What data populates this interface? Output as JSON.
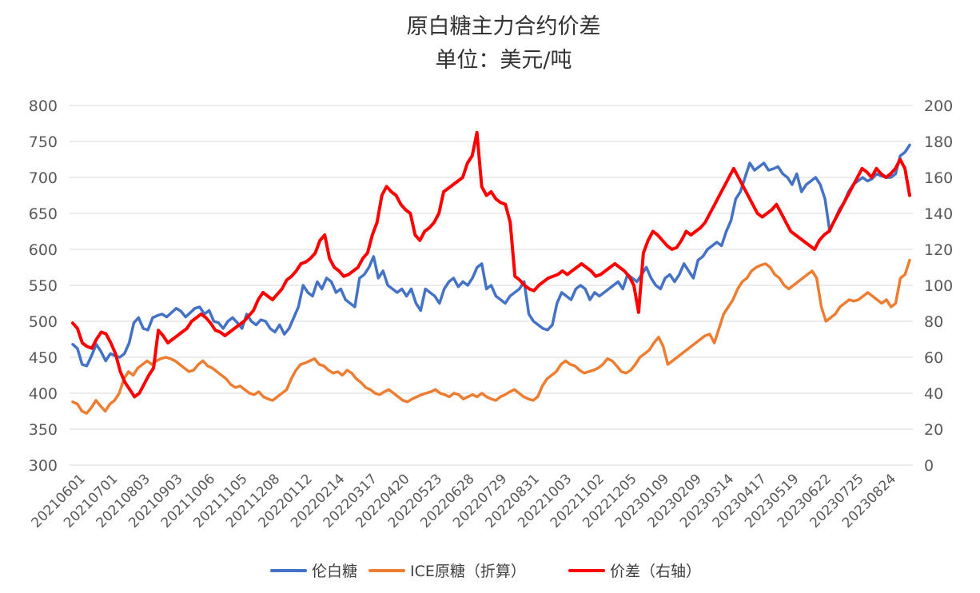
{
  "chart_data": {
    "type": "line",
    "title": "原白糖主力合约价差",
    "subtitle": "单位：美元/吨",
    "y_left": {
      "min": 300,
      "max": 800,
      "step": 50,
      "ticks": [
        "300",
        "350",
        "400",
        "450",
        "500",
        "550",
        "600",
        "650",
        "700",
        "750",
        "800"
      ]
    },
    "y_right": {
      "min": 0,
      "max": 200,
      "step": 20,
      "ticks": [
        "0",
        "20",
        "40",
        "60",
        "80",
        "100",
        "120",
        "140",
        "160",
        "180",
        "200"
      ]
    },
    "x_tick_labels": [
      "20210601",
      "20210701",
      "20210803",
      "20210903",
      "20211006",
      "20211105",
      "20211208",
      "20220112",
      "20220214",
      "20220317",
      "20220420",
      "20220523",
      "20220628",
      "20220729",
      "20220831",
      "20221003",
      "20221102",
      "20221205",
      "20230109",
      "20230209",
      "20230314",
      "20230417",
      "20230519",
      "20230622",
      "20230725",
      "20230824"
    ],
    "legend": {
      "position": "bottom",
      "entries": [
        "伦白糖",
        "ICE原糖（折算）",
        "价差（右轴）"
      ]
    },
    "grid": true,
    "series": [
      {
        "name": "伦白糖",
        "axis": "left",
        "color": "#4472C4",
        "values": [
          468,
          462,
          440,
          438,
          452,
          468,
          458,
          445,
          455,
          452,
          450,
          455,
          470,
          498,
          505,
          490,
          488,
          505,
          508,
          510,
          506,
          512,
          518,
          514,
          506,
          512,
          518,
          520,
          510,
          515,
          500,
          498,
          490,
          500,
          505,
          498,
          490,
          510,
          500,
          495,
          502,
          500,
          490,
          485,
          495,
          482,
          490,
          505,
          520,
          550,
          540,
          535,
          555,
          545,
          560,
          555,
          540,
          545,
          530,
          525,
          520,
          560,
          565,
          575,
          590,
          560,
          570,
          550,
          545,
          540,
          545,
          535,
          545,
          525,
          515,
          545,
          540,
          535,
          525,
          545,
          555,
          560,
          548,
          555,
          550,
          560,
          575,
          580,
          545,
          550,
          535,
          530,
          525,
          535,
          540,
          545,
          555,
          510,
          500,
          495,
          490,
          488,
          495,
          525,
          540,
          535,
          530,
          545,
          550,
          545,
          530,
          540,
          535,
          540,
          545,
          550,
          555,
          545,
          565,
          560,
          555,
          565,
          575,
          560,
          550,
          545,
          560,
          565,
          555,
          565,
          580,
          570,
          560,
          585,
          590,
          600,
          605,
          610,
          605,
          625,
          640,
          670,
          680,
          700,
          720,
          710,
          715,
          720,
          710,
          712,
          715,
          705,
          700,
          690,
          705,
          680,
          690,
          695,
          700,
          690,
          670,
          625,
          640,
          655,
          665,
          680,
          690,
          695,
          700,
          695,
          698,
          705,
          702,
          700,
          700,
          705,
          730,
          735,
          745
        ]
      },
      {
        "name": "ICE原糖（折算）",
        "axis": "left",
        "color": "#ED7D31",
        "values": [
          388,
          385,
          375,
          372,
          380,
          390,
          382,
          375,
          385,
          390,
          400,
          420,
          430,
          425,
          435,
          440,
          445,
          440,
          445,
          448,
          450,
          448,
          445,
          440,
          435,
          430,
          432,
          440,
          445,
          438,
          435,
          430,
          425,
          420,
          412,
          408,
          410,
          405,
          400,
          398,
          402,
          395,
          392,
          390,
          395,
          400,
          405,
          420,
          432,
          440,
          442,
          445,
          448,
          440,
          438,
          432,
          428,
          430,
          425,
          432,
          428,
          420,
          415,
          408,
          405,
          400,
          398,
          402,
          405,
          400,
          395,
          390,
          388,
          392,
          395,
          398,
          400,
          402,
          405,
          400,
          398,
          395,
          400,
          398,
          392,
          395,
          398,
          395,
          400,
          395,
          392,
          390,
          395,
          398,
          402,
          405,
          400,
          395,
          392,
          390,
          395,
          410,
          420,
          425,
          430,
          440,
          445,
          440,
          438,
          432,
          428,
          430,
          432,
          435,
          440,
          448,
          445,
          438,
          430,
          428,
          432,
          440,
          450,
          455,
          460,
          470,
          478,
          465,
          440,
          445,
          450,
          455,
          460,
          465,
          470,
          475,
          480,
          482,
          470,
          490,
          510,
          520,
          530,
          545,
          555,
          560,
          570,
          575,
          578,
          580,
          575,
          565,
          560,
          550,
          545,
          550,
          555,
          560,
          565,
          570,
          560,
          520,
          500,
          505,
          510,
          520,
          525,
          530,
          528,
          530,
          535,
          540,
          535,
          530,
          525,
          530,
          520,
          525,
          560,
          565,
          585
        ]
      },
      {
        "name": "价差（右轴）",
        "axis": "right",
        "color": "#FF0000",
        "values": [
          79,
          76,
          68,
          66,
          65,
          70,
          74,
          73,
          68,
          62,
          52,
          46,
          42,
          38,
          40,
          45,
          50,
          54,
          75,
          72,
          68,
          70,
          72,
          74,
          76,
          80,
          82,
          84,
          82,
          79,
          75,
          74,
          72,
          74,
          76,
          78,
          80,
          83,
          86,
          92,
          96,
          94,
          92,
          95,
          98,
          103,
          105,
          108,
          112,
          113,
          115,
          118,
          125,
          128,
          115,
          110,
          108,
          105,
          106,
          108,
          110,
          115,
          118,
          128,
          135,
          150,
          155,
          152,
          150,
          145,
          142,
          140,
          128,
          125,
          130,
          132,
          135,
          140,
          152,
          154,
          156,
          158,
          160,
          168,
          172,
          185,
          155,
          150,
          152,
          148,
          146,
          145,
          135,
          105,
          103,
          100,
          98,
          97,
          100,
          102,
          104,
          105,
          106,
          108,
          106,
          108,
          110,
          112,
          110,
          108,
          105,
          106,
          108,
          110,
          112,
          110,
          108,
          105,
          100,
          85,
          118,
          125,
          130,
          128,
          125,
          122,
          120,
          121,
          125,
          130,
          128,
          130,
          132,
          135,
          140,
          145,
          150,
          155,
          160,
          165,
          160,
          155,
          150,
          145,
          140,
          138,
          140,
          142,
          145,
          140,
          135,
          130,
          128,
          126,
          124,
          122,
          120,
          125,
          128,
          130,
          135,
          140,
          145,
          150,
          155,
          160,
          165,
          163,
          160,
          165,
          162,
          160,
          162,
          165,
          170,
          165,
          150
        ]
      }
    ]
  }
}
